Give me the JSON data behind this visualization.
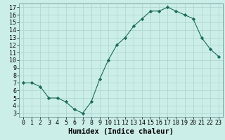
{
  "x": [
    0,
    1,
    2,
    3,
    4,
    5,
    6,
    7,
    8,
    9,
    10,
    11,
    12,
    13,
    14,
    15,
    16,
    17,
    18,
    19,
    20,
    21,
    22,
    23
  ],
  "y": [
    7.0,
    7.0,
    6.5,
    5.0,
    5.0,
    4.5,
    3.5,
    3.0,
    4.5,
    7.5,
    10.0,
    12.0,
    13.0,
    14.5,
    15.5,
    16.5,
    16.5,
    17.0,
    16.5,
    16.0,
    15.5,
    13.0,
    11.5,
    10.5
  ],
  "xlabel": "Humidex (Indice chaleur)",
  "ylabel": "",
  "xlim": [
    -0.5,
    23.5
  ],
  "ylim": [
    2.5,
    17.5
  ],
  "yticks": [
    3,
    4,
    5,
    6,
    7,
    8,
    9,
    10,
    11,
    12,
    13,
    14,
    15,
    16,
    17
  ],
  "xticks": [
    0,
    1,
    2,
    3,
    4,
    5,
    6,
    7,
    8,
    9,
    10,
    11,
    12,
    13,
    14,
    15,
    16,
    17,
    18,
    19,
    20,
    21,
    22,
    23
  ],
  "line_color": "#1a6b5a",
  "marker": "D",
  "marker_size": 2.2,
  "bg_color": "#cceee8",
  "grid_color": "#aad4cc",
  "label_fontsize": 7.5,
  "tick_fontsize": 6.0
}
